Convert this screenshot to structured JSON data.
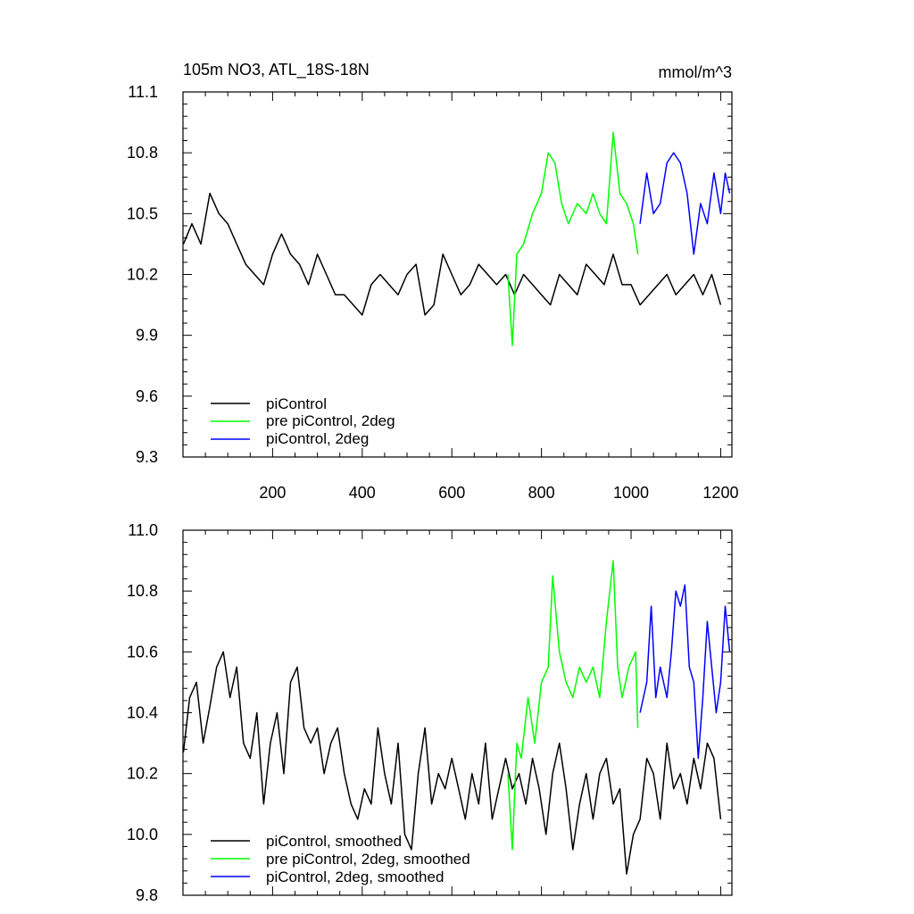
{
  "colors": {
    "piControl": "#000000",
    "pre_piControl_2deg": "#00ff00",
    "piControl_2deg": "#0000ff"
  },
  "chart_data": [
    {
      "type": "line",
      "title": "105m NO3, ATL_18S-18N",
      "units": "mmol/m^3",
      "xlim": [
        0,
        1225
      ],
      "ylim": [
        9.3,
        11.1
      ],
      "xticks": [
        200,
        400,
        600,
        800,
        1000,
        1200
      ],
      "xtick_labels": [
        "200",
        "400",
        "600",
        "800",
        "1000",
        "1200"
      ],
      "yticks": [
        9.3,
        9.6,
        9.9,
        10.2,
        10.5,
        10.8,
        11.1
      ],
      "ytick_labels": [
        "9.3",
        "9.6",
        "9.9",
        "10.2",
        "10.5",
        "10.8",
        "11.1"
      ],
      "legend_position": "bottom-left",
      "series": [
        {
          "name": "piControl",
          "color": "#000000",
          "x": [
            1,
            20,
            40,
            60,
            80,
            100,
            120,
            140,
            160,
            180,
            200,
            220,
            240,
            260,
            280,
            300,
            320,
            340,
            360,
            380,
            400,
            420,
            440,
            460,
            480,
            500,
            520,
            540,
            560,
            580,
            600,
            620,
            640,
            660,
            680,
            700,
            720,
            740,
            760,
            780,
            800,
            820,
            840,
            860,
            880,
            900,
            920,
            940,
            960,
            980,
            1000,
            1020,
            1040,
            1060,
            1080,
            1100,
            1120,
            1140,
            1160,
            1180,
            1200
          ],
          "y": [
            10.35,
            10.45,
            10.35,
            10.6,
            10.5,
            10.45,
            10.35,
            10.25,
            10.2,
            10.15,
            10.3,
            10.4,
            10.3,
            10.25,
            10.15,
            10.3,
            10.2,
            10.1,
            10.1,
            10.05,
            10.0,
            10.15,
            10.2,
            10.15,
            10.1,
            10.2,
            10.25,
            10.0,
            10.05,
            10.3,
            10.2,
            10.1,
            10.15,
            10.25,
            10.2,
            10.15,
            10.2,
            10.1,
            10.2,
            10.15,
            10.1,
            10.05,
            10.2,
            10.15,
            10.1,
            10.25,
            10.2,
            10.15,
            10.3,
            10.15,
            10.15,
            10.05,
            10.1,
            10.15,
            10.2,
            10.1,
            10.15,
            10.2,
            10.1,
            10.2,
            10.05
          ]
        },
        {
          "name": "pre piControl, 2deg",
          "color": "#00ff00",
          "x": [
            725,
            735,
            745,
            760,
            780,
            800,
            815,
            830,
            845,
            860,
            880,
            900,
            915,
            930,
            945,
            960,
            975,
            990,
            1005,
            1015
          ],
          "y": [
            10.2,
            9.85,
            10.3,
            10.35,
            10.5,
            10.6,
            10.8,
            10.75,
            10.55,
            10.45,
            10.55,
            10.5,
            10.6,
            10.5,
            10.45,
            10.9,
            10.6,
            10.55,
            10.45,
            10.3
          ]
        },
        {
          "name": "piControl, 2deg",
          "color": "#0000ff",
          "x": [
            1020,
            1035,
            1050,
            1065,
            1080,
            1095,
            1110,
            1125,
            1140,
            1155,
            1170,
            1185,
            1200,
            1210,
            1220
          ],
          "y": [
            10.45,
            10.7,
            10.5,
            10.55,
            10.75,
            10.8,
            10.75,
            10.6,
            10.3,
            10.55,
            10.45,
            10.7,
            10.5,
            10.7,
            10.6
          ]
        }
      ]
    },
    {
      "type": "line",
      "xlim": [
        0,
        1225
      ],
      "ylim": [
        9.8,
        11.0
      ],
      "xticks": [
        200,
        400,
        600,
        800,
        1000,
        1200
      ],
      "yticks": [
        9.8,
        10.0,
        10.2,
        10.4,
        10.6,
        10.8,
        11.0
      ],
      "ytick_labels": [
        "9.8",
        "10.0",
        "10.2",
        "10.4",
        "10.6",
        "10.8",
        "11.0"
      ],
      "legend_position": "bottom-left",
      "series": [
        {
          "name": "piControl, smoothed",
          "color": "#000000",
          "x": [
            1,
            15,
            30,
            45,
            60,
            75,
            90,
            105,
            120,
            135,
            150,
            165,
            180,
            195,
            210,
            225,
            240,
            255,
            270,
            285,
            300,
            315,
            330,
            345,
            360,
            375,
            390,
            405,
            420,
            435,
            450,
            465,
            480,
            495,
            510,
            525,
            540,
            555,
            570,
            585,
            600,
            615,
            630,
            645,
            660,
            675,
            690,
            705,
            720,
            735,
            750,
            765,
            780,
            795,
            810,
            825,
            840,
            855,
            870,
            885,
            900,
            915,
            930,
            945,
            960,
            975,
            990,
            1005,
            1020,
            1035,
            1050,
            1065,
            1080,
            1095,
            1110,
            1125,
            1140,
            1155,
            1170,
            1185,
            1200
          ],
          "y": [
            10.27,
            10.45,
            10.5,
            10.3,
            10.42,
            10.55,
            10.6,
            10.45,
            10.55,
            10.3,
            10.25,
            10.4,
            10.1,
            10.3,
            10.4,
            10.2,
            10.5,
            10.55,
            10.35,
            10.3,
            10.35,
            10.2,
            10.3,
            10.35,
            10.2,
            10.1,
            10.05,
            10.15,
            10.1,
            10.35,
            10.2,
            10.1,
            10.3,
            10.0,
            9.95,
            10.2,
            10.35,
            10.1,
            10.2,
            10.15,
            10.25,
            10.15,
            10.05,
            10.2,
            10.1,
            10.3,
            10.05,
            10.15,
            10.25,
            10.15,
            10.2,
            10.1,
            10.25,
            10.15,
            10.0,
            10.2,
            10.3,
            10.15,
            9.95,
            10.1,
            10.2,
            10.05,
            10.2,
            10.25,
            10.1,
            10.15,
            9.87,
            10.0,
            10.05,
            10.25,
            10.2,
            10.05,
            10.3,
            10.15,
            10.2,
            10.1,
            10.25,
            10.15,
            10.3,
            10.25,
            10.05
          ]
        },
        {
          "name": "pre piControl, 2deg, smoothed",
          "color": "#00ff00",
          "x": [
            725,
            735,
            745,
            755,
            770,
            785,
            800,
            815,
            825,
            840,
            855,
            870,
            885,
            900,
            915,
            930,
            945,
            960,
            970,
            980,
            995,
            1010,
            1015
          ],
          "y": [
            10.2,
            9.95,
            10.3,
            10.25,
            10.45,
            10.3,
            10.5,
            10.55,
            10.85,
            10.6,
            10.5,
            10.45,
            10.55,
            10.5,
            10.55,
            10.45,
            10.7,
            10.9,
            10.55,
            10.45,
            10.55,
            10.6,
            10.35
          ]
        },
        {
          "name": "piControl, 2deg, smoothed",
          "color": "#0000ff",
          "x": [
            1020,
            1035,
            1045,
            1055,
            1065,
            1080,
            1090,
            1100,
            1110,
            1120,
            1130,
            1140,
            1150,
            1160,
            1170,
            1180,
            1190,
            1200,
            1210,
            1220
          ],
          "y": [
            10.4,
            10.5,
            10.75,
            10.45,
            10.55,
            10.45,
            10.6,
            10.8,
            10.75,
            10.82,
            10.55,
            10.5,
            10.25,
            10.45,
            10.7,
            10.55,
            10.4,
            10.5,
            10.75,
            10.6
          ]
        }
      ]
    }
  ]
}
